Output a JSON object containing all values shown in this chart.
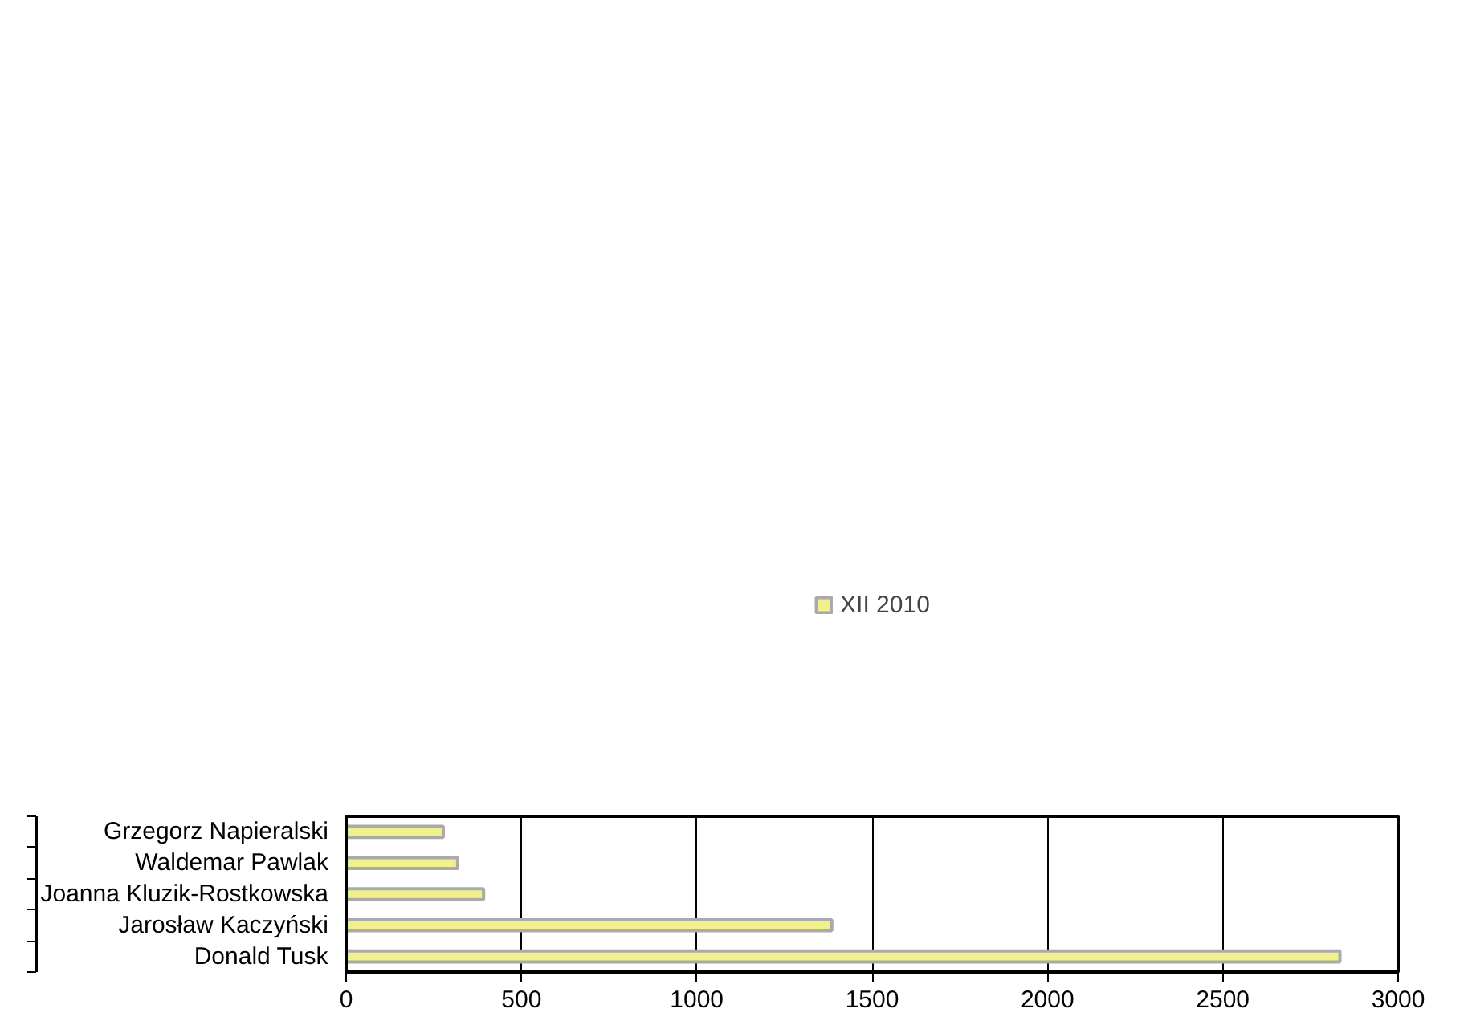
{
  "chart_data": {
    "type": "bar",
    "orientation": "horizontal",
    "categories": [
      "Grzegorz Napieralski",
      "Waldemar Pawlak",
      "Joanna Kluzik-Rostkowska",
      "Jarosław Kaczyński",
      "Donald Tusk"
    ],
    "series": [
      {
        "name": "XII 2010",
        "color": "#f0f08c",
        "values": [
          277,
          318,
          392,
          1385,
          2834
        ]
      }
    ],
    "xlim": [
      0,
      3000
    ],
    "xticks": [
      0,
      500,
      1000,
      1500,
      2000,
      2500,
      3000
    ],
    "grid": "x",
    "legend": "top"
  }
}
